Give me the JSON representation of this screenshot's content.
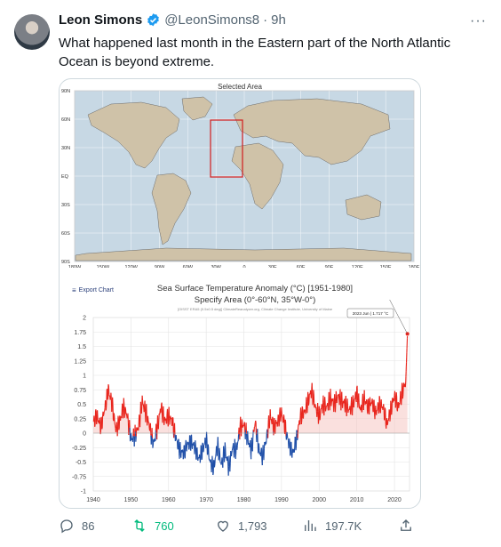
{
  "tweet": {
    "author_name": "Leon Simons",
    "handle": "@LeonSimons8",
    "separator": "·",
    "time": "9h",
    "text": "What happened last month in the Eastern part of the North Atlantic Ocean is beyond extreme.",
    "icons": [
      "verified-badge-icon",
      "more-icon",
      "reply-icon",
      "retweet-icon",
      "like-icon",
      "views-icon",
      "share-icon"
    ],
    "colors": {
      "verified": "#1d9bf0",
      "retweet": "#00ba7c",
      "muted": "#536471"
    }
  },
  "actions": {
    "replies": "86",
    "retweets": "760",
    "likes": "1,793",
    "views": "197.7K"
  },
  "image": {
    "map_title": "Selected Area",
    "lat_labels": [
      "90N",
      "60N",
      "30N",
      "EQ",
      "30S",
      "60S",
      "90S"
    ],
    "lon_labels": [
      "180W",
      "150W",
      "120W",
      "90W",
      "60W",
      "30W",
      "0",
      "30E",
      "60E",
      "90E",
      "120E",
      "150E",
      "180E"
    ],
    "export_label": "Export Chart",
    "chart_title_line1": "Sea Surface Temperature Anomaly (°C) [1951-1980]",
    "chart_title_line2": "Specify Area (0°-60°N, 35°W-0°)",
    "chart_source": "[OISST ERA5 (0.5x0.5 deg)] ClimateReanalyzer.org, Climate Change Institute, University of Maine",
    "tooltip": "2023 Jun | 1.717 °C"
  },
  "chart_data": {
    "type": "area",
    "title": "Sea Surface Temperature Anomaly (°C) [1951-1980]",
    "subtitle": "Specify Area (0°-60°N, 35°W-0°)",
    "xlabel": "",
    "ylabel": "",
    "xlim": [
      1940,
      2024
    ],
    "ylim": [
      -1,
      2
    ],
    "x_ticks": [
      1940,
      1950,
      1960,
      1970,
      1980,
      1990,
      2000,
      2010,
      2020
    ],
    "y_ticks": [
      "2",
      "1.75",
      "1.5",
      "1.25",
      "1",
      "0.75",
      "0.5",
      "0.25",
      "0",
      "-0.25",
      "-0.5",
      "-0.75",
      "-1"
    ],
    "grid": true,
    "positive_color": "#e8241c",
    "negative_color": "#1f4fa8",
    "series": [
      {
        "x": [
          1940,
          1941,
          1942,
          1943,
          1944,
          1945,
          1946,
          1947,
          1948,
          1949,
          1950,
          1951,
          1952,
          1953,
          1954,
          1955,
          1956,
          1957,
          1958,
          1959,
          1960,
          1961,
          1962,
          1963,
          1964,
          1965,
          1966,
          1967,
          1968,
          1969,
          1970,
          1971,
          1972,
          1973,
          1974,
          1975,
          1976,
          1977,
          1978,
          1979,
          1980,
          1981,
          1982,
          1983,
          1984,
          1985,
          1986,
          1987,
          1988,
          1989,
          1990,
          1991,
          1992,
          1993,
          1994,
          1995,
          1996,
          1997,
          1998,
          1999,
          2000,
          2001,
          2002,
          2003,
          2004,
          2005,
          2006,
          2007,
          2008,
          2009,
          2010,
          2011,
          2012,
          2013,
          2014,
          2015,
          2016,
          2017,
          2018,
          2019,
          2020,
          2021,
          2022,
          2023,
          2023.45
        ],
        "y": [
          0.2,
          0.3,
          0.1,
          0.4,
          0.75,
          0.5,
          0.05,
          0.2,
          0.45,
          0.3,
          -0.1,
          -0.05,
          0.1,
          0.55,
          0.35,
          0.1,
          -0.2,
          0.1,
          0.45,
          0.2,
          0.3,
          0.2,
          -0.1,
          -0.3,
          -0.35,
          -0.2,
          -0.15,
          -0.25,
          -0.45,
          -0.3,
          -0.1,
          -0.5,
          -0.6,
          -0.2,
          -0.55,
          -0.3,
          -0.6,
          -0.25,
          -0.3,
          0.1,
          0.15,
          -0.1,
          -0.3,
          0.2,
          -0.3,
          -0.4,
          -0.1,
          0.3,
          0.1,
          0.2,
          0.35,
          0.1,
          -0.2,
          -0.35,
          -0.1,
          0.3,
          0.35,
          0.55,
          0.75,
          0.45,
          0.3,
          0.5,
          0.45,
          0.6,
          0.5,
          0.65,
          0.55,
          0.5,
          0.4,
          0.5,
          0.7,
          0.4,
          0.6,
          0.45,
          0.55,
          0.35,
          0.5,
          0.45,
          0.15,
          0.4,
          0.65,
          0.45,
          0.7,
          0.9,
          1.717
        ]
      }
    ]
  }
}
